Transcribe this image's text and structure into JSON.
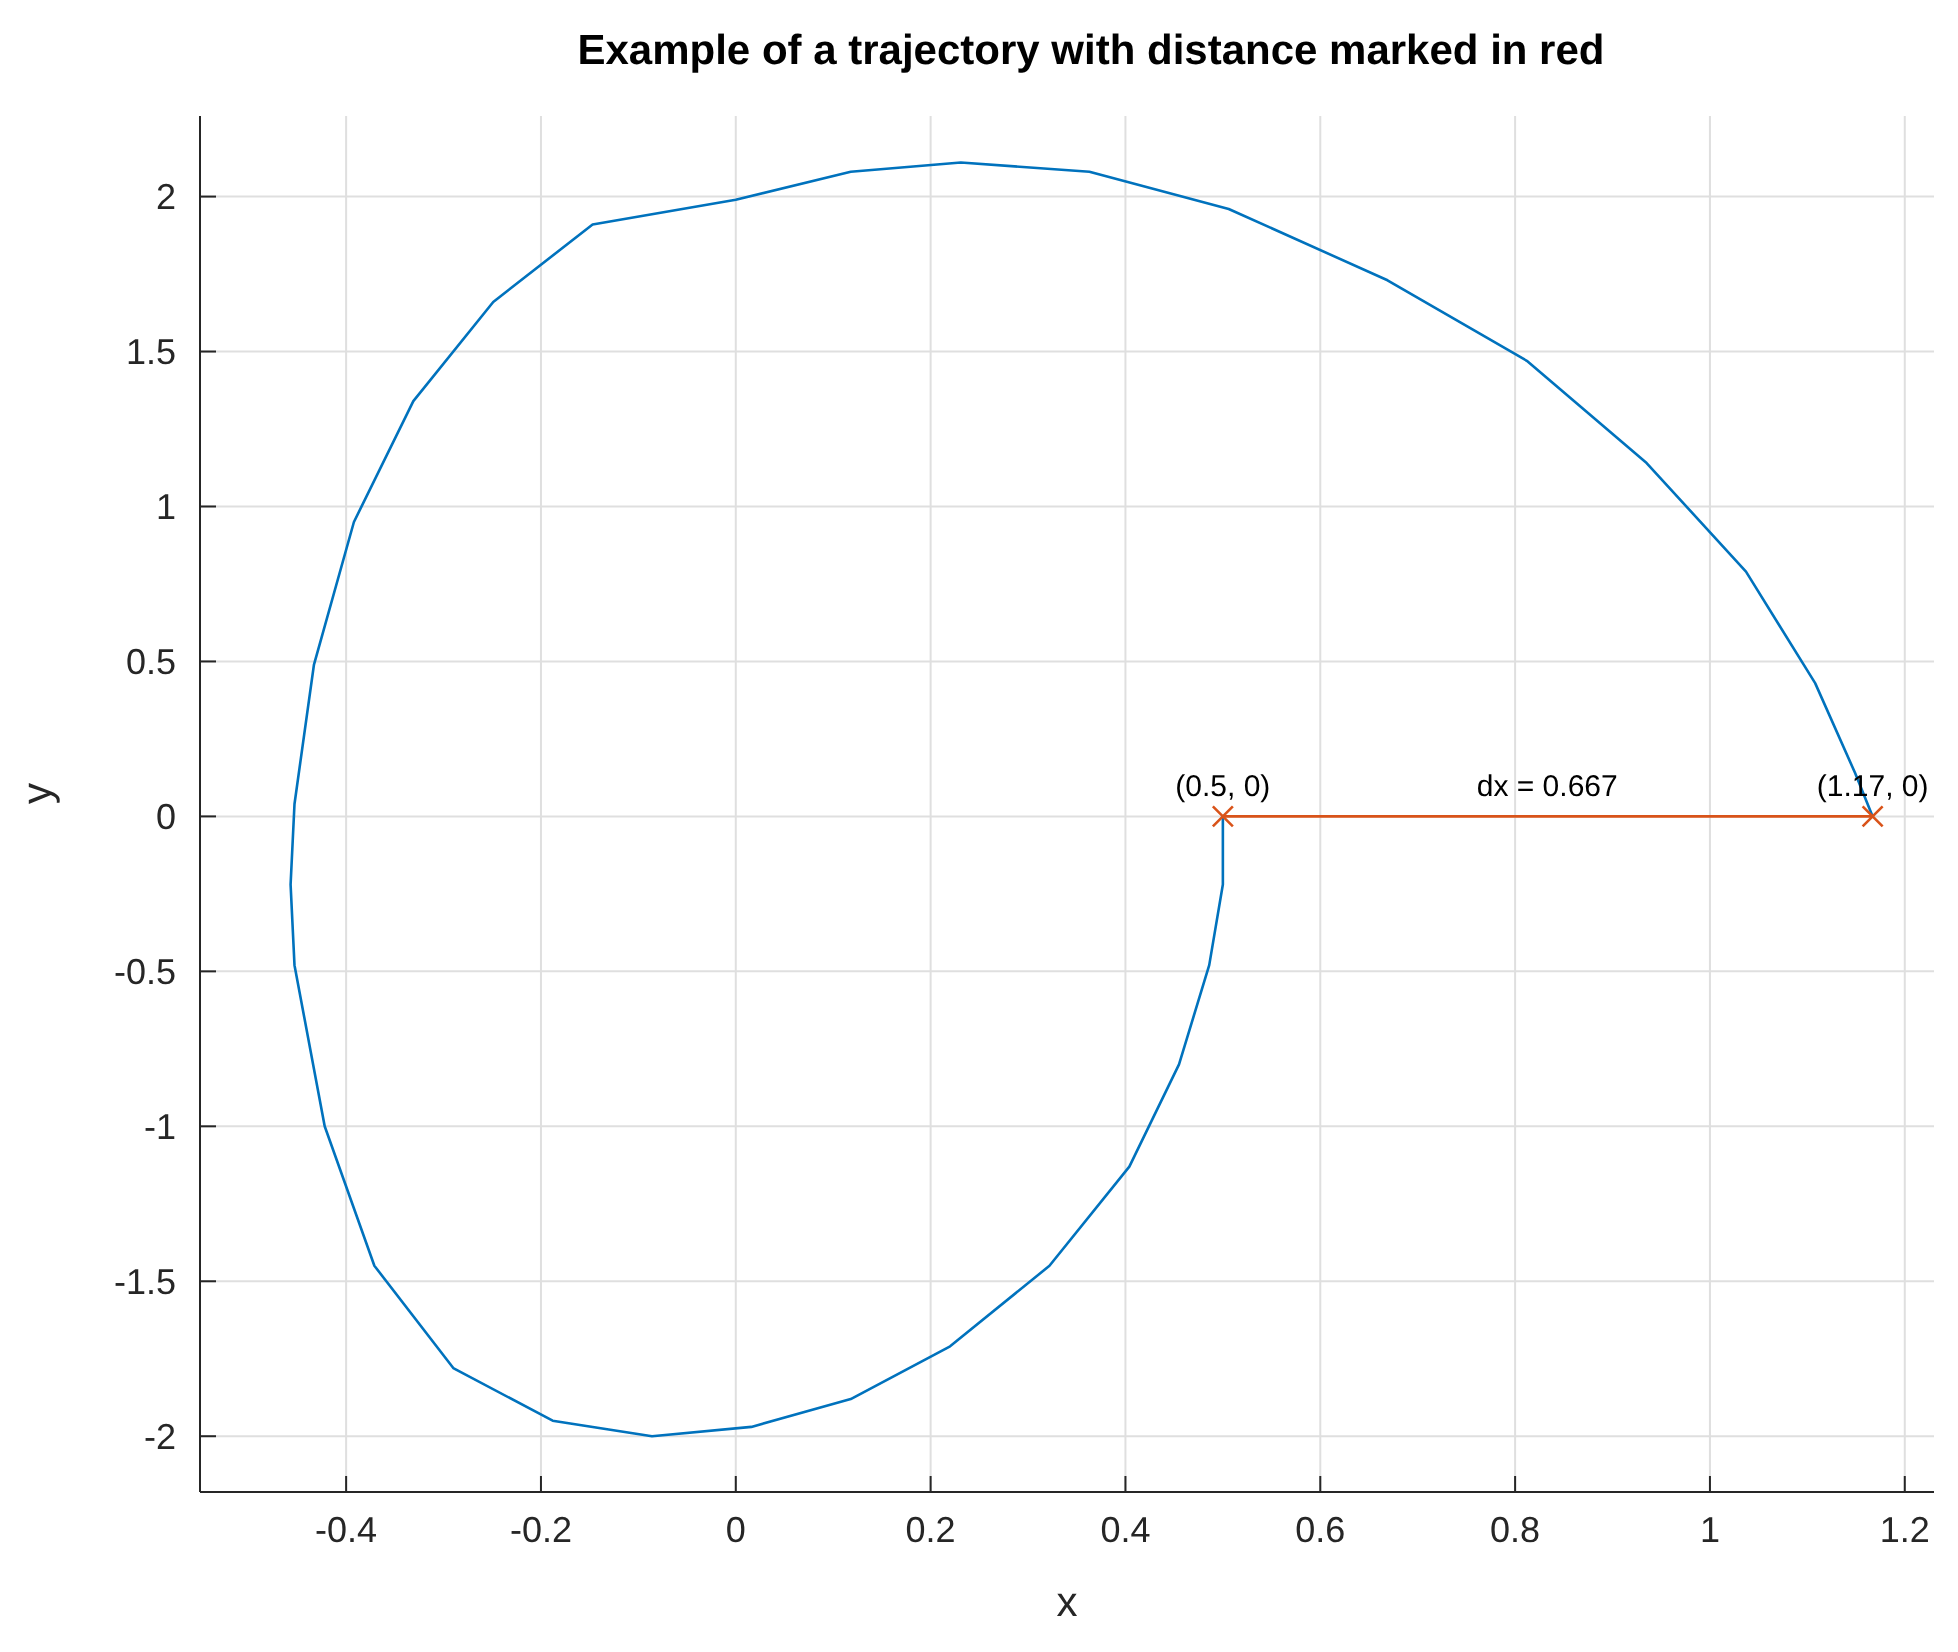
{
  "chart_data": {
    "type": "line",
    "title": "Example of a trajectory with distance marked in red",
    "xlabel": "x",
    "ylabel": "y",
    "xlim": [
      -0.55,
      1.23
    ],
    "ylim": [
      -2.18,
      2.26
    ],
    "xticks": [
      -0.4,
      -0.2,
      0,
      0.2,
      0.4,
      0.6,
      0.8,
      1,
      1.2
    ],
    "yticks": [
      -2,
      -1.5,
      -1,
      -0.5,
      0,
      0.5,
      1,
      1.5,
      2
    ],
    "grid": true,
    "series": [
      {
        "color": "#0072bd",
        "marker": "none",
        "x": [
          0.5,
          0.5,
          0.486,
          0.455,
          0.404,
          0.322,
          0.22,
          0.118,
          0.016,
          -0.086,
          -0.188,
          -0.29,
          -0.371,
          -0.422,
          -0.453,
          -0.457,
          -0.453,
          -0.433,
          -0.392,
          -0.331,
          -0.249,
          -0.147,
          0,
          0.118,
          0.231,
          0.363,
          0.506,
          0.669,
          0.812,
          0.935,
          1.037,
          1.108,
          1.149,
          1.167
        ],
        "values": [
          0,
          -0.22,
          -0.48,
          -0.8,
          -1.13,
          -1.45,
          -1.71,
          -1.88,
          -1.97,
          -2.0,
          -1.95,
          -1.78,
          -1.45,
          -1.0,
          -0.48,
          -0.22,
          0.04,
          0.49,
          0.95,
          1.34,
          1.66,
          1.91,
          1.99,
          2.08,
          2.11,
          2.08,
          1.96,
          1.73,
          1.47,
          1.14,
          0.79,
          0.43,
          0.14,
          0
        ]
      },
      {
        "color": "#d95319",
        "marker": "cross",
        "x": [
          0.5,
          1.167
        ],
        "values": [
          0,
          0
        ]
      }
    ],
    "annotations": [
      {
        "text": "(0.5, 0)",
        "x": 0.5,
        "y": 0
      },
      {
        "text": "dx = 0.667",
        "x": 0.833,
        "y": 0
      },
      {
        "text": "(1.17, 0)",
        "x": 1.167,
        "y": 0
      }
    ]
  }
}
